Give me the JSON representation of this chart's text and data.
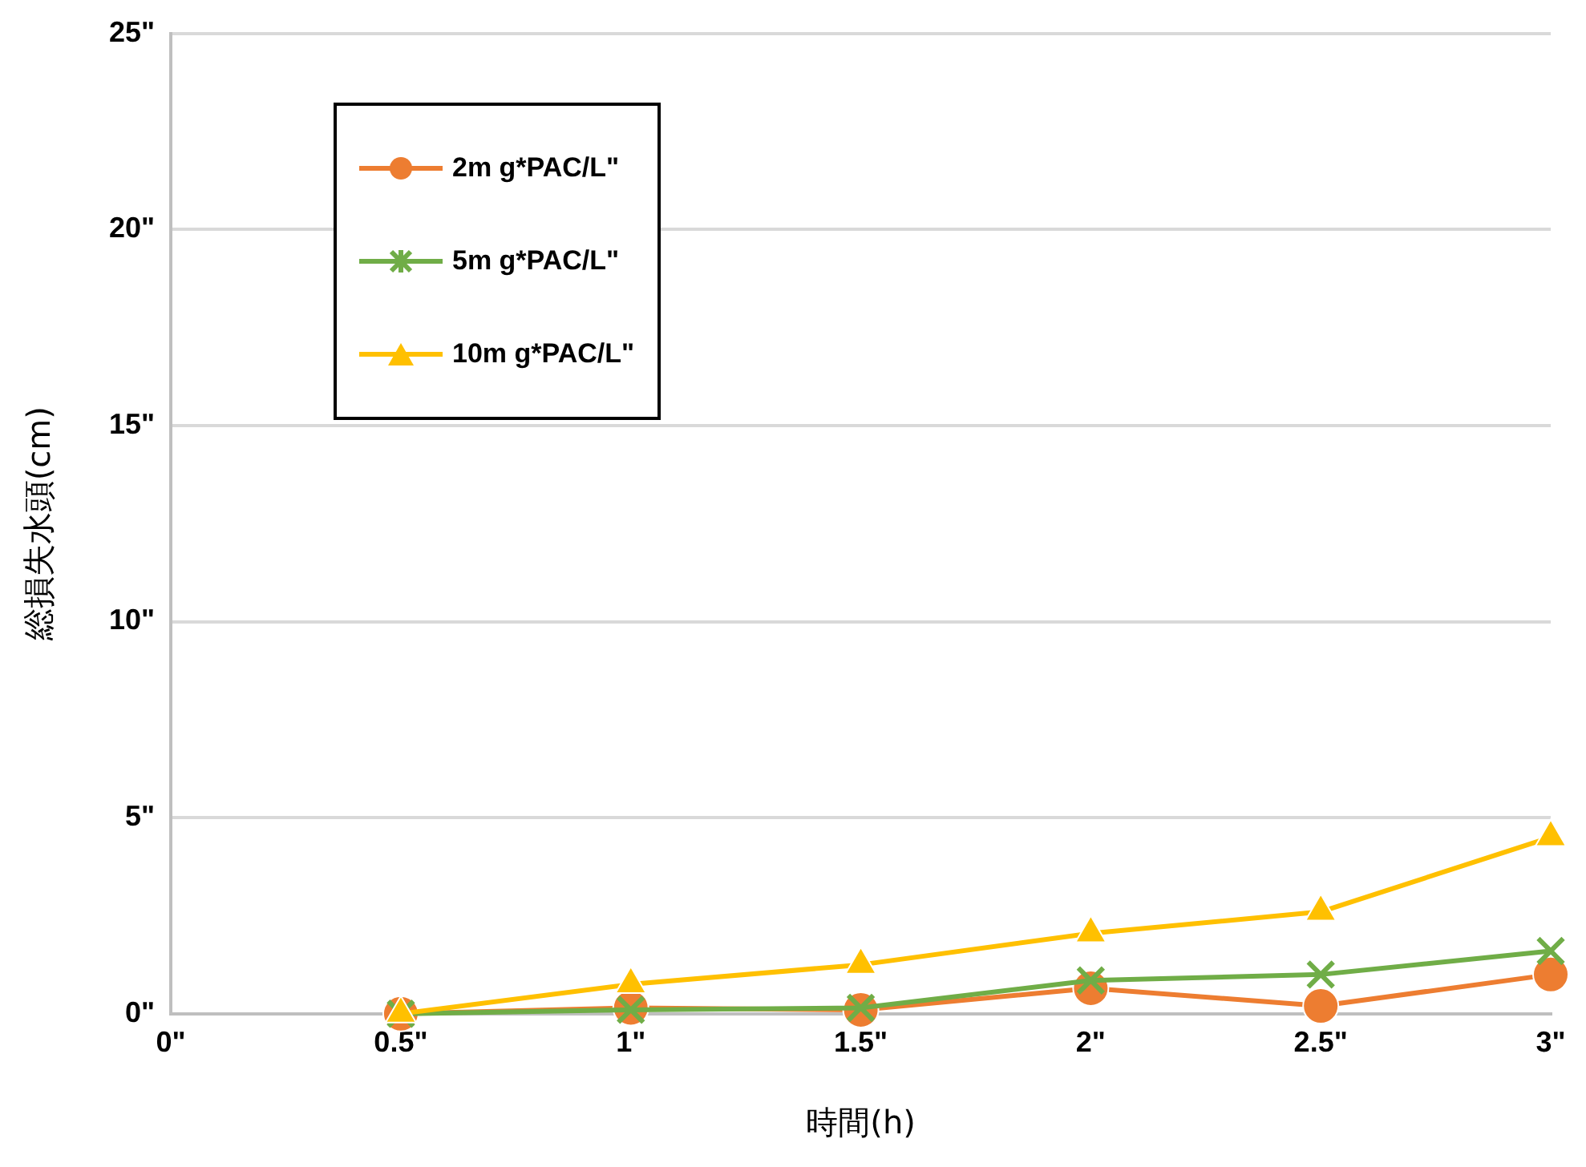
{
  "chart_data": {
    "type": "line",
    "xlabel": "時間(h)",
    "ylabel": "総損失水頭(cm)",
    "x": [
      0.5,
      1,
      1.5,
      2,
      2.5,
      3
    ],
    "series": [
      {
        "name": "2m g*PAC/L\"",
        "color": "#ed7d31",
        "marker": "circle",
        "values": [
          0,
          0.15,
          0.1,
          0.65,
          0.2,
          1.0
        ]
      },
      {
        "name": "5m g*PAC/L\"",
        "color": "#70ad47",
        "marker": "cross",
        "values": [
          0,
          0.1,
          0.15,
          0.85,
          1.0,
          1.6
        ]
      },
      {
        "name": "10m g*PAC/L\"",
        "color": "#ffc000",
        "marker": "triangle",
        "values": [
          0,
          0.75,
          1.25,
          2.05,
          2.6,
          4.5
        ]
      }
    ],
    "xlim": [
      0,
      3
    ],
    "xticks": [
      {
        "value": 0,
        "label": "0\""
      },
      {
        "value": 0.5,
        "label": "0.5\""
      },
      {
        "value": 1,
        "label": "1\""
      },
      {
        "value": 1.5,
        "label": "1.5\""
      },
      {
        "value": 2,
        "label": "2\""
      },
      {
        "value": 2.5,
        "label": "2.5\""
      },
      {
        "value": 3,
        "label": "3\""
      }
    ],
    "ylim": [
      0,
      25
    ],
    "yticks": [
      {
        "value": 0,
        "label": "0\""
      },
      {
        "value": 5,
        "label": "5\""
      },
      {
        "value": 10,
        "label": "10\""
      },
      {
        "value": 15,
        "label": "15\""
      },
      {
        "value": 20,
        "label": "20\""
      },
      {
        "value": 25,
        "label": "25\""
      }
    ],
    "grid": "y",
    "legend": "top left",
    "line_style": "solid"
  }
}
